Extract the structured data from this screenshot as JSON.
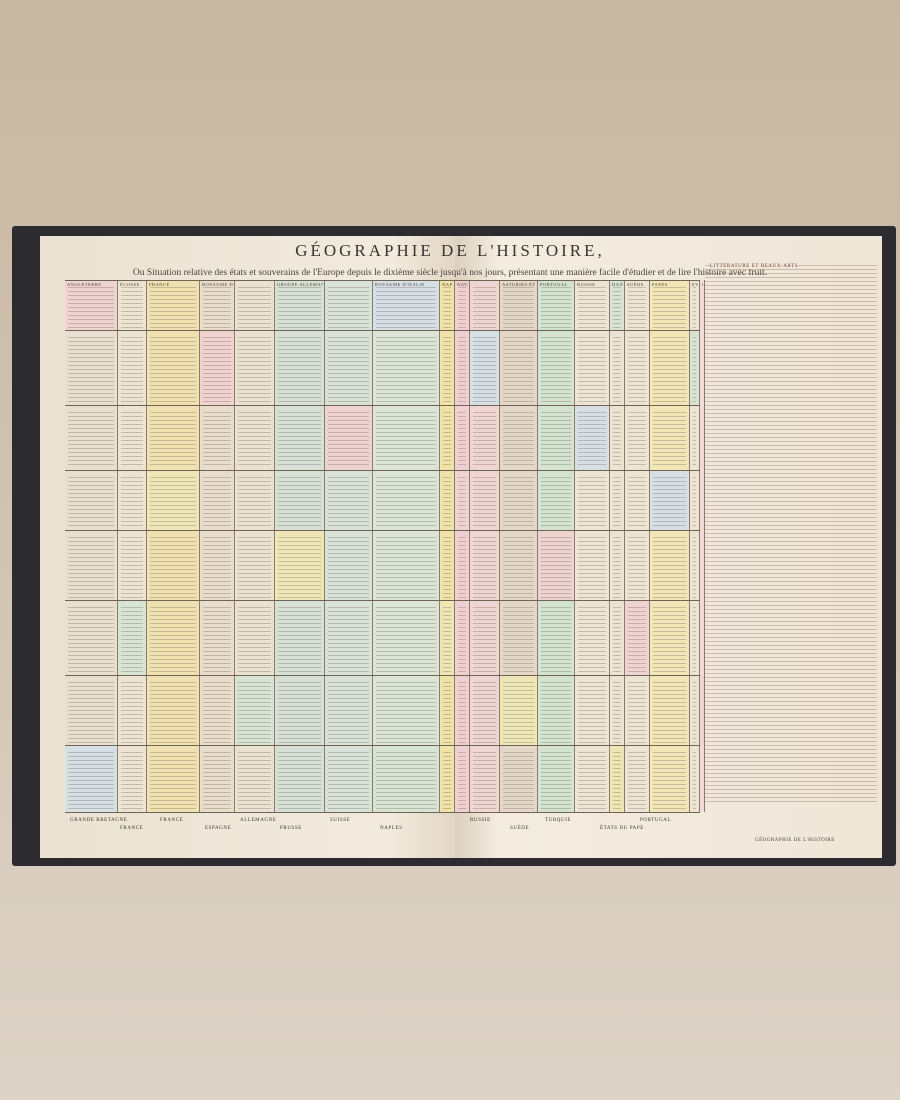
{
  "title": "GÉOGRAPHIE DE L'HISTOIRE,",
  "subtitle": "Ou Situation relative des états et souverains de l'Europe depuis le dixième siècle jusqu'à nos jours, présentant une manière facile d'étudier et de lire l'histoire avec fruit.",
  "columns": [
    {
      "header": "ANGLETERRE",
      "color": "#e9dfcf"
    },
    {
      "header": "ÉCOSSE",
      "color": "#ece3d3"
    },
    {
      "header": "FRANCE",
      "color": "#efe2b0"
    },
    {
      "header": "ROYAUME DES DEUX BOURGOGNES",
      "color": "#e8dccb"
    },
    {
      "header": "",
      "color": "#ebe1d1"
    },
    {
      "header": "GROUPE ALLEMANDE",
      "color": "#d6e0d4"
    },
    {
      "header": "",
      "color": "#d9e2d6"
    },
    {
      "header": "ROYAUME D'ITALIE",
      "color": "#dde5d6"
    },
    {
      "header": "NAPLES",
      "color": "#efe3a8"
    },
    {
      "header": "NAVARRE",
      "color": "#efcfcf"
    },
    {
      "header": "",
      "color": "#f0d6d2"
    },
    {
      "header": "ASTURIES ET ESPAGNE",
      "color": "#e4d7c8"
    },
    {
      "header": "PORTUGAL",
      "color": "#d3e3cf"
    },
    {
      "header": "RUSSIE",
      "color": "#eee4d4"
    },
    {
      "header": "DANEMARK",
      "color": "#ece3d2"
    },
    {
      "header": "SUÈDE",
      "color": "#ede4d4"
    },
    {
      "header": "PAPES",
      "color": "#f1e6b6"
    },
    {
      "header": "EVÉNEMENTS",
      "color": "#ece3d3"
    },
    {
      "header": "GRANDS HOMMES",
      "color": "#f2dbd7"
    }
  ],
  "right_column_header": "LITTÉRATURE ET BEAUX-ARTS",
  "bottom_labels": [
    "GRANDE BRETAGNE",
    "FRANCE",
    "FRANCE",
    "ESPAGNE",
    "ALLEMAGNE",
    "PRUSSE",
    "SUISSE",
    "NAPLES",
    "RUSSIE",
    "SUÈDE",
    "TURQUIE",
    "ÉTATS DU PAPE",
    "PORTUGAL"
  ],
  "footer_right": "GÉOGRAPHIE DE L'HISTOIRE"
}
